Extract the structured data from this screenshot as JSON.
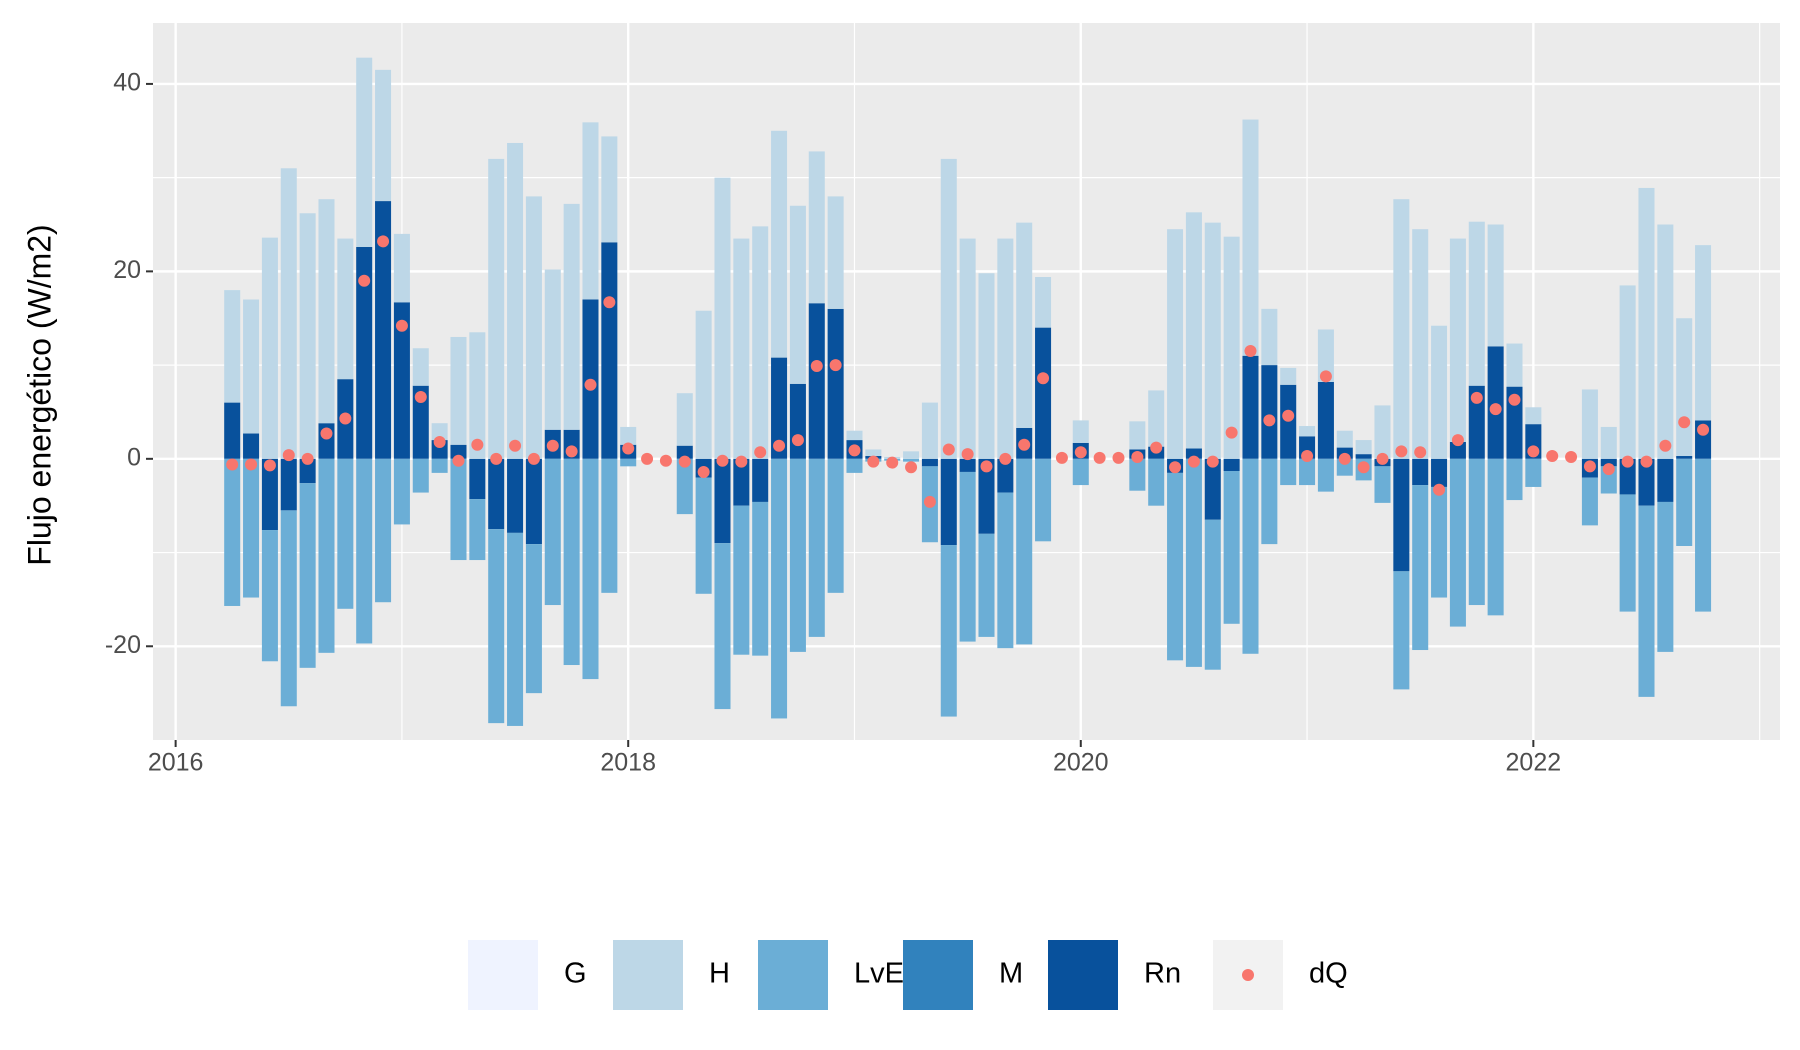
{
  "chart_data": {
    "type": "stacked_bar_dot",
    "ylabel": "Flujo energético (W/m2)",
    "x": [
      "2016-04",
      "2016-05",
      "2016-06",
      "2016-07",
      "2016-08",
      "2016-09",
      "2016-10",
      "2016-11",
      "2016-12",
      "2017-01",
      "2017-02",
      "2017-03",
      "2017-04",
      "2017-05",
      "2017-06",
      "2017-07",
      "2017-08",
      "2017-09",
      "2017-10",
      "2017-11",
      "2017-12",
      "2018-01",
      "2018-02",
      "2018-03",
      "2018-04",
      "2018-05",
      "2018-06",
      "2018-07",
      "2018-08",
      "2018-09",
      "2018-10",
      "2018-11",
      "2018-12",
      "2019-01",
      "2019-02",
      "2019-03",
      "2019-04",
      "2019-05",
      "2019-06",
      "2019-07",
      "2019-08",
      "2019-09",
      "2019-10",
      "2019-11",
      "2019-12",
      "2020-01",
      "2020-02",
      "2020-03",
      "2020-04",
      "2020-05",
      "2020-06",
      "2020-07",
      "2020-08",
      "2020-09",
      "2020-10",
      "2020-11",
      "2020-12",
      "2021-01",
      "2021-02",
      "2021-03",
      "2021-04",
      "2021-05",
      "2021-06",
      "2021-07",
      "2021-08",
      "2021-09",
      "2021-10",
      "2021-11",
      "2021-12",
      "2022-01",
      "2022-02",
      "2022-03",
      "2022-04",
      "2022-05",
      "2022-06",
      "2022-07",
      "2022-08",
      "2022-09",
      "2022-10"
    ],
    "series": [
      {
        "name": "G",
        "color": "#eff3ff",
        "values": [
          null,
          null,
          null,
          null,
          null,
          null,
          null,
          null,
          null,
          null,
          null,
          null,
          null,
          null,
          null,
          null,
          null,
          null,
          null,
          null,
          null,
          null,
          null,
          null,
          null,
          null,
          null,
          null,
          null,
          null,
          null,
          null,
          null,
          null,
          null,
          null,
          null,
          null,
          null,
          null,
          null,
          null,
          null,
          null,
          null,
          null,
          null,
          null,
          null,
          null,
          null,
          null,
          null,
          null,
          null,
          null,
          null,
          null,
          null,
          null,
          null,
          null,
          null,
          null,
          null,
          null,
          null,
          null,
          null,
          null,
          null,
          null,
          null,
          null,
          null,
          null,
          null,
          null,
          null
        ]
      },
      {
        "name": "H",
        "color": "#bdd7e7",
        "values": [
          12,
          14.3,
          23.6,
          31,
          26.2,
          23.9,
          15,
          20.2,
          14,
          7.3,
          4,
          1.8,
          11.5,
          13.5,
          32,
          33.7,
          28,
          17.1,
          24.1,
          18.9,
          11.3,
          1.9,
          null,
          null,
          5.6,
          15.8,
          30,
          23.5,
          24.8,
          24.2,
          19,
          16.2,
          12,
          1,
          0.7,
          0.2,
          0.8,
          6,
          32,
          23.5,
          19.8,
          23.5,
          21.9,
          5.4,
          null,
          2.4,
          null,
          null,
          3,
          6,
          24.5,
          25.2,
          25.2,
          23.7,
          25.2,
          6,
          1.8,
          1.1,
          5.6,
          1.8,
          1.5,
          5.7,
          27.7,
          24.5,
          14.2,
          21.7,
          17.5,
          13,
          4.6,
          1.8,
          null,
          null,
          7.4,
          3.4,
          18.5,
          28.9,
          25,
          14.7,
          18.7
        ]
      },
      {
        "name": "LvE",
        "color": "#6baed6",
        "values": [
          -15.7,
          -14.8,
          -14,
          -20.9,
          -19.7,
          -20.7,
          -16,
          -19.7,
          -15.3,
          -7,
          -3.6,
          -1.5,
          -10.8,
          -6.5,
          -20.7,
          -20.6,
          -15.9,
          -15.6,
          -22,
          -23.5,
          -14.3,
          -0.8,
          null,
          null,
          -5.9,
          -12.4,
          -17.7,
          -15.9,
          -16.4,
          -27.7,
          -20.6,
          -19,
          -14.3,
          -1.5,
          -0.3,
          -0.2,
          -0.3,
          -8.1,
          -18.3,
          -18.1,
          -11,
          -16.6,
          -19.8,
          -8.8,
          null,
          -2.8,
          null,
          null,
          -3.4,
          -5,
          -20,
          -22.2,
          -16,
          -16.3,
          -20.8,
          -9.1,
          -2.8,
          -2.8,
          -3.5,
          -1.8,
          -2.3,
          -3.9,
          -12.6,
          -17.6,
          -11.8,
          -17.9,
          -15.6,
          -16.7,
          -4.4,
          -3,
          null,
          null,
          -5.1,
          -2.9,
          -12.5,
          -20.4,
          -16,
          -9.3,
          -16.3
        ]
      },
      {
        "name": "M",
        "color": "#3182bd",
        "values": [
          null,
          null,
          null,
          null,
          null,
          null,
          null,
          null,
          null,
          null,
          null,
          null,
          null,
          null,
          null,
          null,
          null,
          null,
          null,
          null,
          null,
          null,
          null,
          null,
          null,
          null,
          null,
          null,
          null,
          null,
          null,
          null,
          null,
          null,
          null,
          null,
          null,
          null,
          null,
          null,
          null,
          null,
          null,
          null,
          null,
          null,
          null,
          null,
          null,
          null,
          null,
          null,
          null,
          null,
          null,
          null,
          null,
          null,
          null,
          null,
          null,
          null,
          null,
          null,
          null,
          null,
          null,
          null,
          null,
          null,
          null,
          null,
          null,
          null,
          null,
          null,
          null,
          null,
          null
        ]
      },
      {
        "name": "Rn",
        "color": "#08519c",
        "values": [
          6,
          2.7,
          -7.6,
          -5.5,
          -2.6,
          3.8,
          8.5,
          22.6,
          27.5,
          16.7,
          7.8,
          2,
          1.5,
          -4.3,
          -7.5,
          -7.9,
          -9.1,
          3.1,
          3.1,
          17,
          23.1,
          1.5,
          null,
          null,
          1.4,
          -2,
          -9,
          -5,
          -4.6,
          10.8,
          8,
          16.6,
          16,
          2,
          0.3,
          0,
          0,
          -0.8,
          -9.2,
          -1.4,
          -8,
          -3.6,
          3.3,
          14,
          null,
          1.7,
          null,
          null,
          1,
          1.3,
          -1.5,
          1.1,
          -6.5,
          -1.3,
          11,
          10,
          7.9,
          2.4,
          8.2,
          1.2,
          0.5,
          -0.8,
          -12,
          -2.8,
          -3,
          1.8,
          7.8,
          12,
          7.7,
          3.7,
          null,
          null,
          -2,
          -0.8,
          -3.8,
          -5,
          -4.6,
          0.3,
          4.1
        ]
      }
    ],
    "points": {
      "name": "dQ",
      "color": "#f8766d",
      "values": [
        -0.6,
        -0.6,
        -0.7,
        0.4,
        0,
        2.7,
        4.3,
        19,
        23.2,
        14.2,
        6.6,
        1.8,
        -0.2,
        1.5,
        0,
        1.4,
        0,
        1.4,
        0.8,
        7.9,
        16.7,
        1.1,
        0,
        -0.2,
        -0.3,
        -1.4,
        -0.2,
        -0.3,
        0.7,
        1.4,
        2,
        9.9,
        10,
        0.9,
        -0.3,
        -0.4,
        -0.9,
        -4.6,
        1,
        0.5,
        -0.8,
        0,
        1.5,
        8.6,
        0.1,
        0.7,
        0.1,
        0.1,
        0.2,
        1.2,
        -0.9,
        -0.3,
        -0.3,
        2.8,
        11.5,
        4.1,
        4.6,
        0.3,
        8.8,
        0,
        -0.9,
        0,
        0.8,
        0.7,
        -3.3,
        2,
        6.5,
        5.3,
        6.3,
        0.8,
        0.3,
        0.2,
        -0.8,
        -1.1,
        -0.3,
        -0.3,
        1.4,
        3.9,
        3.1
      ]
    },
    "xlim": [
      2015.9,
      2023.09
    ],
    "xticks": [
      2016,
      2018,
      2020,
      2022
    ],
    "ylim": [
      -30,
      46.5
    ],
    "yticks": [
      -20,
      0,
      20,
      40
    ],
    "grid": true
  }
}
